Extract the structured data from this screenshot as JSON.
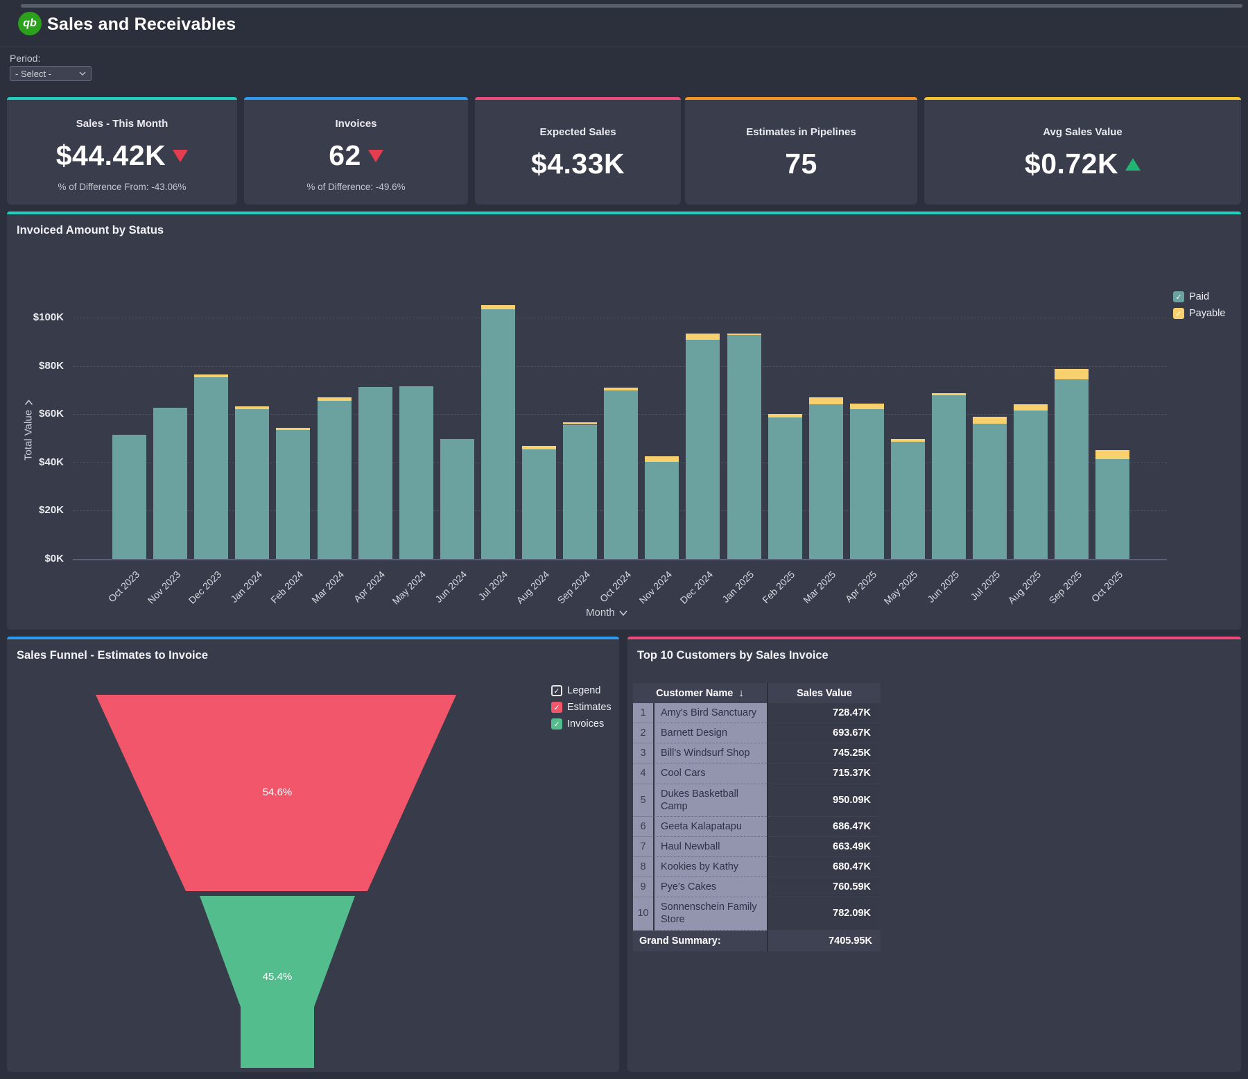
{
  "header": {
    "logo_text": "qb",
    "title": "Sales and Receivables"
  },
  "period": {
    "label": "Period:",
    "value": "- Select -"
  },
  "kpis": [
    {
      "title": "Sales - This Month",
      "value": "$44.42K",
      "trend": "down",
      "sub": "% of Difference From: -43.06%",
      "accent": "#1fd0c0"
    },
    {
      "title": "Invoices",
      "value": "62",
      "trend": "down",
      "sub": "% of Difference: -49.6%",
      "accent": "#2e9bf0"
    },
    {
      "title": "Expected Sales",
      "value": "$4.33K",
      "trend": "none",
      "sub": "",
      "accent": "#f0497c"
    },
    {
      "title": "Estimates in Pipelines",
      "value": "75",
      "trend": "none",
      "sub": "",
      "accent": "#f79321"
    },
    {
      "title": "Avg Sales Value",
      "value": "$0.72K",
      "trend": "up",
      "sub": "",
      "accent": "#f6c426"
    }
  ],
  "chart_data": [
    {
      "type": "bar",
      "title": "Invoiced Amount by Status",
      "stacked": true,
      "xlabel": "Month",
      "ylabel": "Total Value",
      "ylim": [
        0,
        100
      ],
      "y_tick_labels": [
        "$0K",
        "$20K",
        "$40K",
        "$60K",
        "$80K",
        "$100K"
      ],
      "grid": "dashed-horizontal",
      "legend_position": "top-right",
      "categories": [
        "Oct 2023",
        "Nov 2023",
        "Dec 2023",
        "Jan 2024",
        "Feb 2024",
        "Mar 2024",
        "Apr 2024",
        "May 2024",
        "Jun 2024",
        "Jul 2024",
        "Aug 2024",
        "Sep 2024",
        "Oct 2024",
        "Nov 2024",
        "Dec 2024",
        "Jan 2025",
        "Feb 2025",
        "Mar 2025",
        "Apr 2025",
        "May 2025",
        "Jun 2025",
        "Jul 2025",
        "Aug 2025",
        "Sep 2025",
        "Oct 2025"
      ],
      "series": [
        {
          "name": "Paid",
          "color": "#6ba29f",
          "values": [
            51.4,
            62.6,
            75.2,
            62.2,
            53.4,
            65.6,
            71.3,
            71.6,
            49.7,
            103.5,
            45.4,
            55.6,
            69.9,
            40.3,
            90.8,
            92.8,
            58.6,
            64.1,
            62.2,
            48.7,
            67.8,
            56.0,
            61.5,
            74.3,
            41.4
          ]
        },
        {
          "name": "Payable",
          "color": "#f8d06e",
          "values": [
            0,
            0,
            1.2,
            1.0,
            0.8,
            1.4,
            0,
            0,
            0,
            1.7,
            1.4,
            1.1,
            1.2,
            2.2,
            2.7,
            0.6,
            1.4,
            2.9,
            2.2,
            0.9,
            0.9,
            2.9,
            2.6,
            4.5,
            3.6
          ]
        }
      ]
    },
    {
      "type": "funnel",
      "title": "Sales Funnel - Estimates to Invoice",
      "legend_label": "Legend",
      "segments": [
        {
          "name": "Estimates",
          "value_label": "54.6%",
          "value": 54.6,
          "color": "#f2566a"
        },
        {
          "name": "Invoices",
          "value_label": "45.4%",
          "value": 45.4,
          "color": "#54bd8e"
        }
      ]
    },
    {
      "type": "table",
      "title": "Top 10 Customers by Sales Invoice",
      "columns": [
        "Customer Name",
        "Sales Value"
      ],
      "sort_icon": "↓",
      "rows": [
        {
          "rank": "1",
          "name": "Amy's Bird Sanctuary",
          "value": "728.47K"
        },
        {
          "rank": "2",
          "name": "Barnett Design",
          "value": "693.67K"
        },
        {
          "rank": "3",
          "name": "Bill's Windsurf Shop",
          "value": "745.25K"
        },
        {
          "rank": "4",
          "name": "Cool Cars",
          "value": "715.37K"
        },
        {
          "rank": "5",
          "name": "Dukes Basketball Camp",
          "value": "950.09K"
        },
        {
          "rank": "6",
          "name": "Geeta Kalapatapu",
          "value": "686.47K"
        },
        {
          "rank": "7",
          "name": "Haul Newball",
          "value": "663.49K"
        },
        {
          "rank": "8",
          "name": "Kookies by Kathy",
          "value": "680.47K"
        },
        {
          "rank": "9",
          "name": "Pye's Cakes",
          "value": "760.59K"
        },
        {
          "rank": "10",
          "name": "Sonnenschein Family Store",
          "value": "782.09K"
        }
      ],
      "grand_summary_label": "Grand Summary:",
      "grand_summary_value": "7405.95K"
    }
  ],
  "colors": {
    "paid": "#6ba29f",
    "payable": "#f8d06e",
    "estimates": "#f2566a",
    "invoices": "#54bd8e"
  }
}
